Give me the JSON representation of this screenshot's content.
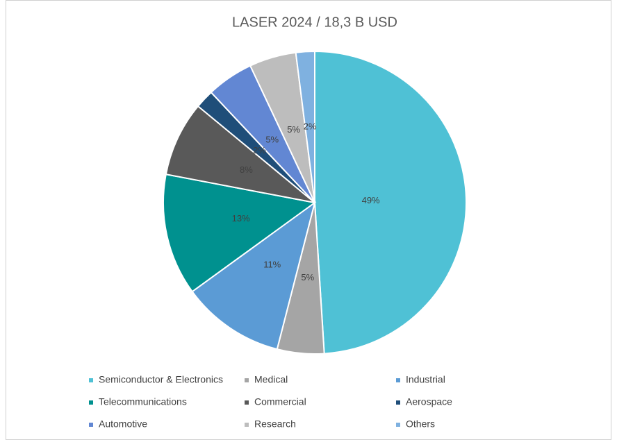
{
  "chart_data": {
    "type": "pie",
    "title": "LASER 2024 / 18,3 B USD",
    "categories": [
      "Semiconductor & Electronics",
      "Medical",
      "Industrial",
      "Telecommunications",
      "Commercial",
      "Aerospace",
      "Automotive",
      "Research",
      "Others"
    ],
    "values": [
      49,
      5,
      11,
      13,
      8,
      2,
      5,
      5,
      2
    ],
    "value_labels": [
      "49%",
      "5%",
      "11%",
      "13%",
      "8%",
      "2%",
      "5%",
      "5%",
      "2%"
    ],
    "colors": [
      "#4fc1d5",
      "#a5a5a5",
      "#5b9bd5",
      "#00918f",
      "#595959",
      "#1f4e79",
      "#6287d3",
      "#bdbdbd",
      "#7fb1e0"
    ],
    "legend": "bottom"
  }
}
